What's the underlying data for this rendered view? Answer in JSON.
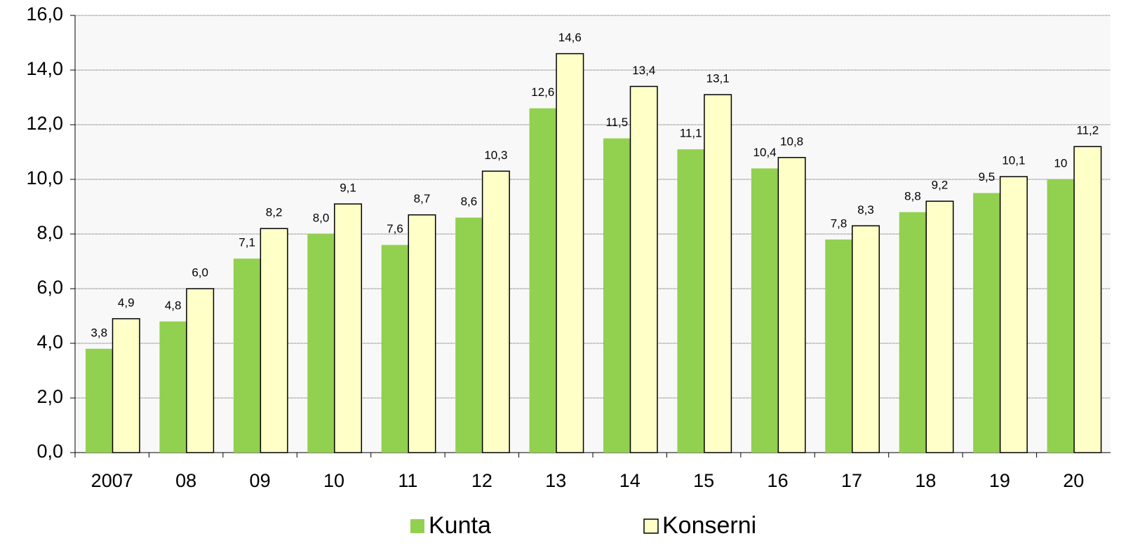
{
  "chart_data": {
    "type": "bar",
    "categories": [
      "2007",
      "08",
      "09",
      "10",
      "11",
      "12",
      "13",
      "14",
      "15",
      "16",
      "17",
      "18",
      "19",
      "20"
    ],
    "series": [
      {
        "name": "Kunta",
        "color": "#92d050",
        "values": [
          3.8,
          4.8,
          7.1,
          8.0,
          7.6,
          8.6,
          12.6,
          11.5,
          11.1,
          10.4,
          7.8,
          8.8,
          9.5,
          10
        ],
        "value_labels": [
          "3,8",
          "4,8",
          "7,1",
          "8,0",
          "7,6",
          "8,6",
          "12,6",
          "11,5",
          "11,1",
          "10,4",
          "7,8",
          "8,8",
          "9,5",
          "10"
        ]
      },
      {
        "name": "Konserni",
        "color": "#ffffc8",
        "values": [
          4.9,
          6.0,
          8.2,
          9.1,
          8.7,
          10.3,
          14.6,
          13.4,
          13.1,
          10.8,
          8.3,
          9.2,
          10.1,
          11.2
        ],
        "value_labels": [
          "4,9",
          "6,0",
          "8,2",
          "9,1",
          "8,7",
          "10,3",
          "14,6",
          "13,4",
          "13,1",
          "10,8",
          "8,3",
          "9,2",
          "10,1",
          "11,2"
        ]
      }
    ],
    "ylim": [
      0,
      16
    ],
    "yticks": [
      {
        "value": 0,
        "label": "0,0"
      },
      {
        "value": 2,
        "label": "2,0"
      },
      {
        "value": 4,
        "label": "4,0"
      },
      {
        "value": 6,
        "label": "6,0"
      },
      {
        "value": 8,
        "label": "8,0"
      },
      {
        "value": 10,
        "label": "10,0"
      },
      {
        "value": 12,
        "label": "12,0"
      },
      {
        "value": 14,
        "label": "14,0"
      },
      {
        "value": 16,
        "label": "16,0"
      }
    ],
    "grid": true,
    "legend": "bottom"
  }
}
